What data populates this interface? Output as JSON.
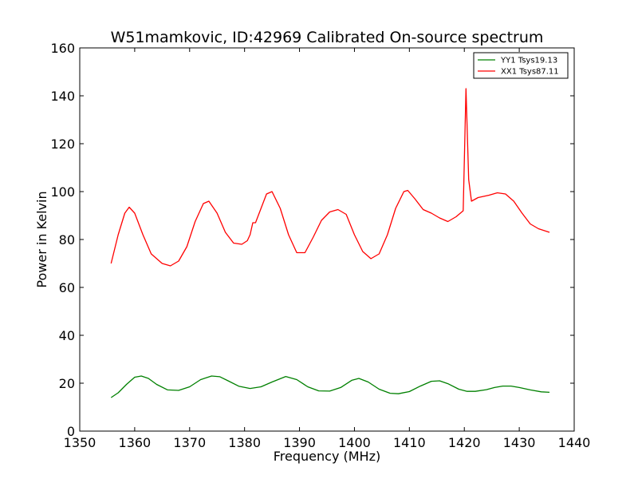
{
  "chart_data": {
    "type": "line",
    "title": "W51mamkovic, ID:42969 Calibrated On-source spectrum",
    "xlabel": "Frequency (MHz)",
    "ylabel": "Power in Kelvin",
    "xlim": [
      1350,
      1440
    ],
    "ylim": [
      0,
      160
    ],
    "xticks": [
      1350,
      1360,
      1370,
      1380,
      1390,
      1400,
      1410,
      1420,
      1430,
      1440
    ],
    "yticks": [
      0,
      20,
      40,
      60,
      80,
      100,
      120,
      140,
      160
    ],
    "grid": false,
    "legend_position": "top-right",
    "series": [
      {
        "name": "YY1 Tsys19.13",
        "color": "#008000",
        "x": [
          1355.7,
          1357,
          1358.5,
          1360,
          1361.2,
          1362.5,
          1364,
          1366,
          1368,
          1370,
          1372,
          1374,
          1375.5,
          1377,
          1379,
          1381,
          1383,
          1385,
          1387.5,
          1389.5,
          1391.5,
          1393.5,
          1395.5,
          1397.5,
          1399.5,
          1400.8,
          1402.5,
          1404.5,
          1406.5,
          1408,
          1410,
          1412,
          1414,
          1415.5,
          1417,
          1419,
          1420.5,
          1422,
          1424,
          1425.5,
          1427,
          1428.5,
          1430,
          1432,
          1434,
          1435.5
        ],
        "y": [
          14,
          16,
          19.5,
          22.5,
          23,
          22,
          19.5,
          17.2,
          17,
          18.5,
          21.5,
          23,
          22.7,
          21,
          18.7,
          17.8,
          18.5,
          20.5,
          22.8,
          21.5,
          18.5,
          16.8,
          16.7,
          18.2,
          21.2,
          22,
          20.5,
          17.5,
          15.8,
          15.6,
          16.5,
          18.8,
          20.8,
          21,
          19.8,
          17.5,
          16.6,
          16.6,
          17.3,
          18.2,
          18.8,
          18.8,
          18.2,
          17.2,
          16.4,
          16.2
        ]
      },
      {
        "name": "XX1 Tsys87.11",
        "color": "#ff0000",
        "x": [
          1355.7,
          1357,
          1358.2,
          1359,
          1360,
          1361.5,
          1363,
          1365,
          1366.5,
          1368,
          1369.5,
          1371,
          1372.5,
          1373.5,
          1375,
          1376.5,
          1378,
          1379.5,
          1380.5,
          1381,
          1381.5,
          1382,
          1383,
          1384,
          1385,
          1386.5,
          1388,
          1389.5,
          1391,
          1392.5,
          1394,
          1395.5,
          1397,
          1398.5,
          1400,
          1401.5,
          1403,
          1404.5,
          1406,
          1407.5,
          1409,
          1409.7,
          1411,
          1412.5,
          1414,
          1415.5,
          1417,
          1418.5,
          1419.8,
          1420.3,
          1420.8,
          1421.3,
          1422.5,
          1424.5,
          1426,
          1427.5,
          1429,
          1430.5,
          1432,
          1433.5,
          1435.5
        ],
        "y": [
          70,
          82,
          91,
          93.5,
          91,
          82,
          74,
          70,
          69,
          71,
          77,
          87.5,
          95,
          96,
          91,
          83,
          78.5,
          78,
          79.5,
          82,
          87,
          87,
          93,
          99,
          100,
          93,
          82,
          74.5,
          74.5,
          81,
          88,
          91.5,
          92.5,
          90.5,
          82,
          75,
          72,
          74,
          82,
          93,
          100,
          100.5,
          97,
          92.5,
          91,
          89,
          87.5,
          89.5,
          92,
          143,
          105,
          96,
          97.5,
          98.5,
          99.5,
          99,
          96,
          91,
          86.5,
          84.5,
          83
        ]
      }
    ]
  }
}
